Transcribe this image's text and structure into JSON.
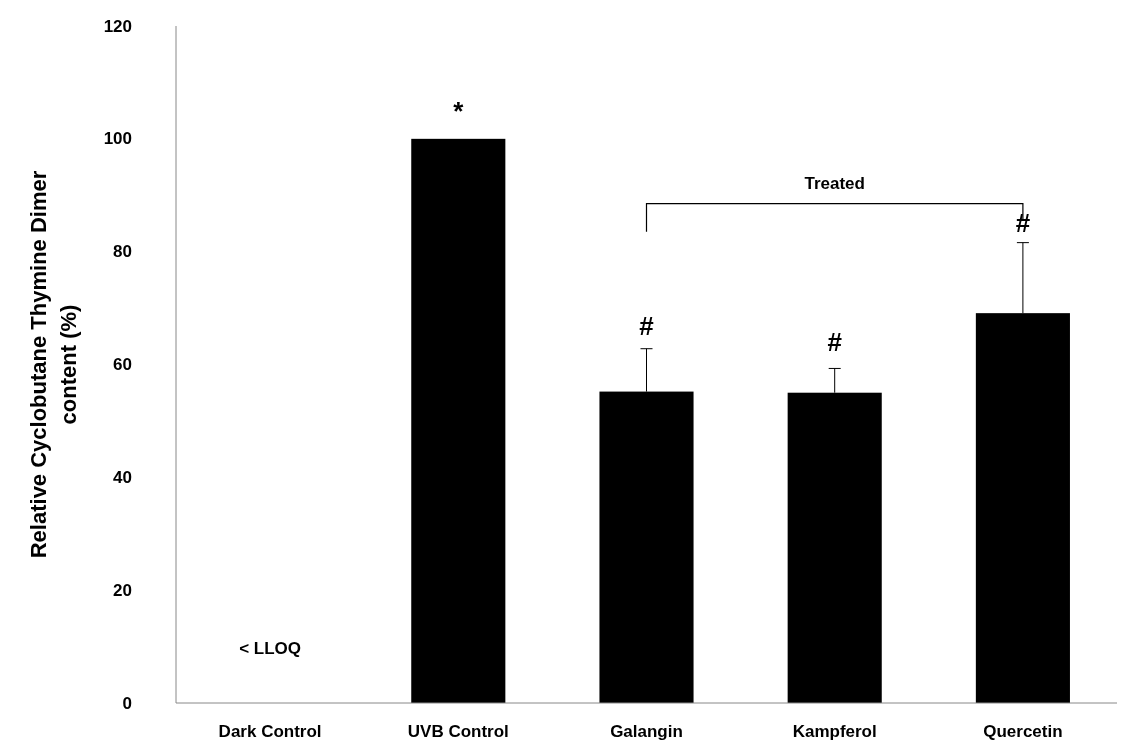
{
  "chart_data": {
    "type": "bar",
    "ylabel": "Relative Cyclobutane Thymine Dimer\ncontent (%)",
    "categories": [
      "Dark Control",
      "UVB Control",
      "Galangin",
      "Kampferol",
      "Quercetin"
    ],
    "values": [
      null,
      100,
      55.2,
      55.0,
      69.1
    ],
    "errors": [
      null,
      null,
      [
        55.2,
        62.8
      ],
      [
        55.0,
        59.3
      ],
      [
        69.1,
        81.6
      ]
    ],
    "color": "#000000",
    "ylim": [
      0,
      120
    ],
    "yticks": [
      0,
      20,
      40,
      60,
      80,
      100,
      120
    ],
    "grid": false,
    "annotations": [
      "< LLOQ",
      "*",
      "#",
      "#",
      "#",
      "Treated"
    ]
  }
}
